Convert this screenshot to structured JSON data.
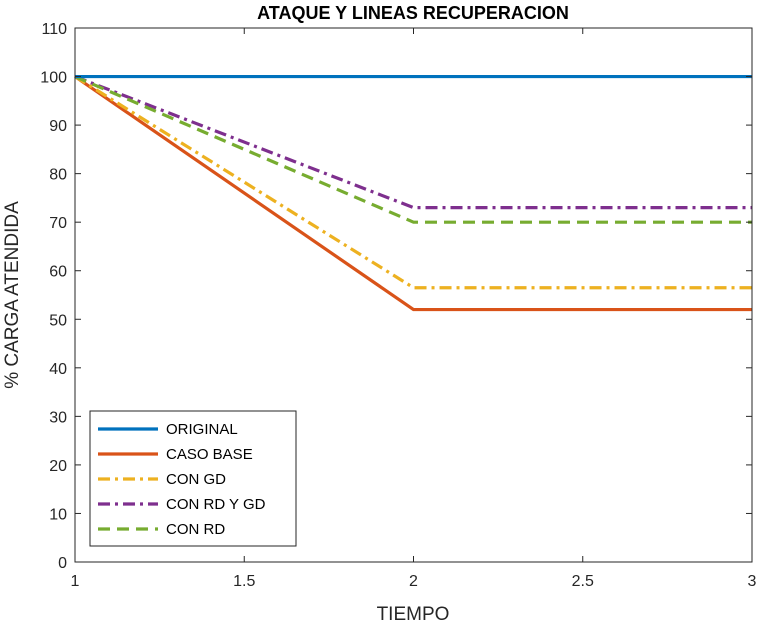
{
  "chart_data": {
    "type": "line",
    "title": "ATAQUE Y LINEAS RECUPERACION",
    "xlabel": "TIEMPO",
    "ylabel": "% CARGA ATENDIDA",
    "xlim": [
      1,
      3
    ],
    "ylim": [
      0,
      110
    ],
    "xticks": [
      1,
      1.5,
      2,
      2.5,
      3
    ],
    "xtick_labels": [
      "1",
      "1.5",
      "2",
      "2.5",
      "3"
    ],
    "yticks": [
      0,
      10,
      20,
      30,
      40,
      50,
      60,
      70,
      80,
      90,
      100,
      110
    ],
    "ytick_labels": [
      "0",
      "10",
      "20",
      "30",
      "40",
      "50",
      "60",
      "70",
      "80",
      "90",
      "100",
      "110"
    ],
    "grid": false,
    "legend_position": "bottom-left",
    "x": [
      1,
      2,
      3
    ],
    "series": [
      {
        "name": "ORIGINAL",
        "values": [
          100,
          100,
          100
        ],
        "color": "#0072BD",
        "dash": "solid"
      },
      {
        "name": "CASO BASE",
        "values": [
          100,
          52,
          52
        ],
        "color": "#D95319",
        "dash": "solid"
      },
      {
        "name": "CON GD",
        "values": [
          100,
          56.5,
          56.5
        ],
        "color": "#EDB120",
        "dash": "dashdot"
      },
      {
        "name": "CON RD Y GD",
        "values": [
          100,
          73,
          73
        ],
        "color": "#7E2F8E",
        "dash": "dashdot"
      },
      {
        "name": "CON RD",
        "values": [
          100,
          70,
          70
        ],
        "color": "#77AC30",
        "dash": "dashed"
      }
    ]
  }
}
